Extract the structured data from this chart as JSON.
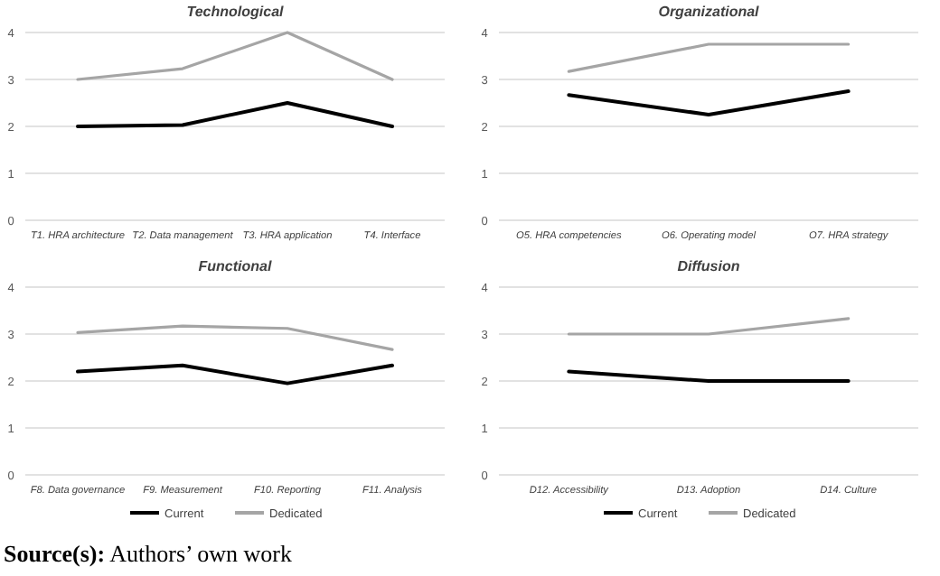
{
  "chart_data": [
    {
      "type": "line",
      "title": "Technological",
      "categories": [
        "T1. HRA architecture",
        "T2. Data management",
        "T3. HRA application",
        "T4. Interface"
      ],
      "series": [
        {
          "color": "#000000",
          "values": [
            2,
            2.03,
            2.5,
            2
          ]
        },
        {
          "color": "#a5a5a5",
          "values": [
            3,
            3.23,
            4,
            3
          ]
        }
      ],
      "ylim": [
        0,
        4
      ],
      "yticks": [
        0,
        1,
        2,
        3,
        4
      ],
      "grid": "y",
      "legend": false
    },
    {
      "type": "line",
      "title": "Organizational",
      "categories": [
        "O5. HRA competencies",
        "O6. Operating model",
        "O7. HRA strategy"
      ],
      "series": [
        {
          "color": "#000000",
          "values": [
            2.67,
            2.25,
            2.75
          ]
        },
        {
          "color": "#a5a5a5",
          "values": [
            3.17,
            3.75,
            3.75
          ]
        }
      ],
      "ylim": [
        0,
        4
      ],
      "yticks": [
        0,
        1,
        2,
        3,
        4
      ],
      "grid": "y",
      "legend": false
    },
    {
      "type": "line",
      "title": "Functional",
      "categories": [
        "F8. Data governance",
        "F9. Measurement",
        "F10. Reporting",
        "F11. Analysis"
      ],
      "series": [
        {
          "name": "Current",
          "color": "#000000",
          "values": [
            2.2,
            2.33,
            1.95,
            2.33
          ]
        },
        {
          "name": "Dedicated",
          "color": "#a5a5a5",
          "values": [
            3.03,
            3.17,
            3.12,
            2.67
          ]
        }
      ],
      "ylim": [
        0,
        4
      ],
      "yticks": [
        0,
        1,
        2,
        3,
        4
      ],
      "grid": "y",
      "legend": "bottom"
    },
    {
      "type": "line",
      "title": "Diffusion",
      "categories": [
        "D12. Accessibility",
        "D13. Adoption",
        "D14. Culture"
      ],
      "series": [
        {
          "name": "Current",
          "color": "#000000",
          "values": [
            2.2,
            2,
            2
          ]
        },
        {
          "name": "Dedicated",
          "color": "#a5a5a5",
          "values": [
            3,
            3,
            3.33
          ]
        }
      ],
      "ylim": [
        0,
        4
      ],
      "yticks": [
        0,
        1,
        2,
        3,
        4
      ],
      "grid": "y",
      "legend": "bottom",
      "annotations": [
        "Source(s): Authors’ own work"
      ]
    }
  ]
}
